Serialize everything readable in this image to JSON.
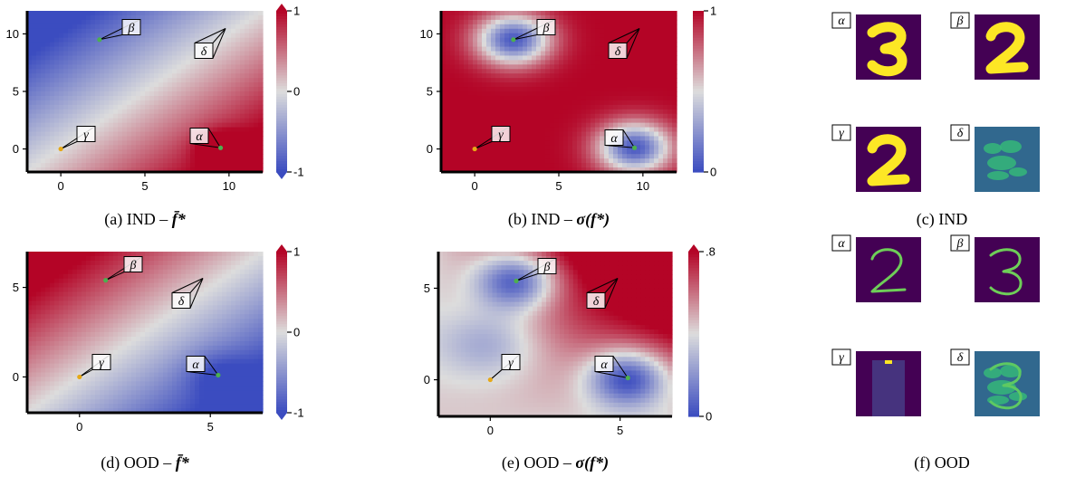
{
  "panels": [
    {
      "id": "a",
      "caption_label": "(a) IND –",
      "caption_math": "f̄*",
      "kind": "mean",
      "colors": {
        "low": "#3b4cc0",
        "mid": "#dddddd",
        "high": "#b40426"
      },
      "axis": {
        "xticks": [
          {
            "value": 0,
            "label": "0"
          },
          {
            "value": 5,
            "label": "5"
          },
          {
            "value": 10,
            "label": "10"
          }
        ],
        "yticks": [
          {
            "value": 0,
            "label": "0"
          },
          {
            "value": 5,
            "label": "5"
          },
          {
            "value": 10,
            "label": "10"
          }
        ],
        "xlim": [
          -2,
          12
        ],
        "ylim": [
          -2,
          12
        ]
      },
      "colorbar": {
        "ticks": [
          {
            "value": 1,
            "label": "1"
          },
          {
            "value": 0,
            "label": "0"
          },
          {
            "value": -1,
            "label": "-1"
          }
        ],
        "range": [
          -1,
          1
        ],
        "extend": "both"
      },
      "points": [
        {
          "label": "α",
          "x": 9.5,
          "y": 0.1,
          "color": "#4caf50"
        },
        {
          "label": "β",
          "x": 2.3,
          "y": 9.5,
          "color": "#4caf50"
        },
        {
          "label": "γ",
          "x": 0.0,
          "y": 0.0,
          "color": "#e6a817"
        },
        {
          "label": "δ",
          "label_only": true
        }
      ]
    },
    {
      "id": "b",
      "caption_label": "(b) IND –",
      "caption_math": "σ(f*)",
      "kind": "std",
      "colors": {
        "low": "#3b4cc0",
        "mid": "#dddddd",
        "high": "#b40426"
      },
      "axis": {
        "xticks": [
          {
            "value": 0,
            "label": "0"
          },
          {
            "value": 5,
            "label": "5"
          },
          {
            "value": 10,
            "label": "10"
          }
        ],
        "yticks": [
          {
            "value": 0,
            "label": "0"
          },
          {
            "value": 5,
            "label": "5"
          },
          {
            "value": 10,
            "label": "10"
          }
        ],
        "xlim": [
          -2,
          12
        ],
        "ylim": [
          -2,
          12
        ]
      },
      "colorbar": {
        "ticks": [
          {
            "value": 1,
            "label": "1"
          },
          {
            "value": 0,
            "label": "0"
          }
        ],
        "range": [
          0,
          1
        ],
        "extend": "none"
      },
      "points": [
        {
          "label": "α",
          "x": 9.5,
          "y": 0.1,
          "color": "#4caf50"
        },
        {
          "label": "β",
          "x": 2.3,
          "y": 9.5,
          "color": "#4caf50"
        },
        {
          "label": "γ",
          "x": 0.0,
          "y": 0.0,
          "color": "#e6a817"
        },
        {
          "label": "δ",
          "label_only": true
        }
      ]
    },
    {
      "id": "d",
      "caption_label": "(d) OOD –",
      "caption_math": "f̄*",
      "kind": "mean",
      "colors": {
        "low": "#3b4cc0",
        "mid": "#dddddd",
        "high": "#b40426"
      },
      "axis": {
        "xticks": [
          {
            "value": 0,
            "label": "0"
          },
          {
            "value": 5,
            "label": "5"
          }
        ],
        "yticks": [
          {
            "value": 0,
            "label": "0"
          },
          {
            "value": 5,
            "label": "5"
          }
        ],
        "xlim": [
          -2,
          7
        ],
        "ylim": [
          -2,
          7
        ]
      },
      "colorbar": {
        "ticks": [
          {
            "value": 1,
            "label": "1"
          },
          {
            "value": 0,
            "label": "0"
          },
          {
            "value": -1,
            "label": "-1"
          }
        ],
        "range": [
          -1,
          1
        ],
        "extend": "both"
      },
      "points": [
        {
          "label": "α",
          "x": 5.3,
          "y": 0.1,
          "color": "#4caf50"
        },
        {
          "label": "β",
          "x": 1.0,
          "y": 5.4,
          "color": "#4caf50"
        },
        {
          "label": "γ",
          "x": 0.0,
          "y": 0.0,
          "color": "#e6a817"
        },
        {
          "label": "δ",
          "label_only": true
        }
      ]
    },
    {
      "id": "e",
      "caption_label": "(e) OOD –",
      "caption_math": "σ(f*)",
      "kind": "std",
      "colors": {
        "low": "#3b4cc0",
        "mid": "#dddddd",
        "high": "#b40426"
      },
      "axis": {
        "xticks": [
          {
            "value": 0,
            "label": "0"
          },
          {
            "value": 5,
            "label": "5"
          }
        ],
        "yticks": [
          {
            "value": 0,
            "label": "0"
          },
          {
            "value": 5,
            "label": "5"
          }
        ],
        "xlim": [
          -2,
          7
        ],
        "ylim": [
          -2,
          7
        ]
      },
      "colorbar": {
        "ticks": [
          {
            "value": 0.8,
            "label": ".8"
          },
          {
            "value": 0,
            "label": "0"
          }
        ],
        "range": [
          0,
          0.8
        ],
        "extend": "max"
      },
      "points": [
        {
          "label": "α",
          "x": 5.3,
          "y": 0.1,
          "color": "#4caf50"
        },
        {
          "label": "β",
          "x": 1.0,
          "y": 5.4,
          "color": "#4caf50"
        },
        {
          "label": "γ",
          "x": 0.0,
          "y": 0.0,
          "color": "#e6a817"
        },
        {
          "label": "δ",
          "label_only": true
        }
      ]
    }
  ],
  "image_grids": [
    {
      "id": "c",
      "caption": "(c) IND",
      "items": [
        {
          "label": "α",
          "digit": "3",
          "style": "thick",
          "background": "#440154",
          "stroke": "#fde725"
        },
        {
          "label": "β",
          "digit": "2",
          "style": "thick",
          "background": "#440154",
          "stroke": "#fde725"
        },
        {
          "label": "γ",
          "digit": "2",
          "style": "thick",
          "background": "#440154",
          "stroke": "#fde725"
        },
        {
          "label": "δ",
          "digit": "",
          "style": "noise",
          "background": "#31688e",
          "stroke": "#35b779"
        }
      ]
    },
    {
      "id": "f",
      "caption": "(f) OOD",
      "items": [
        {
          "label": "α",
          "digit": "2",
          "style": "thin",
          "background": "#440154",
          "stroke": "#6ece58"
        },
        {
          "label": "β",
          "digit": "3",
          "style": "thin",
          "background": "#440154",
          "stroke": "#6ece58"
        },
        {
          "label": "γ",
          "digit": "",
          "style": "garment",
          "background": "#440154",
          "stroke": "#46337e"
        },
        {
          "label": "δ",
          "digit": "3",
          "style": "thin-noise",
          "background": "#31688e",
          "stroke": "#35b779"
        }
      ]
    }
  ]
}
